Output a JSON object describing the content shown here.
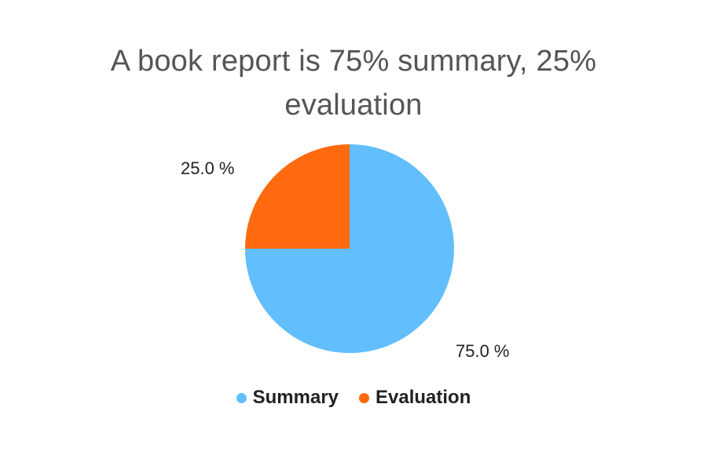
{
  "chart_data": {
    "type": "pie",
    "title_lines": [
      "A book report is 75% summary, 25%",
      "evaluation"
    ],
    "slices": [
      {
        "name": "Summary",
        "value": 75.0,
        "label": "75.0 %",
        "color": "#62BEFC"
      },
      {
        "name": "Evaluation",
        "value": 25.0,
        "label": "25.0 %",
        "color": "#FF6A10"
      }
    ],
    "legend_position": "bottom"
  }
}
